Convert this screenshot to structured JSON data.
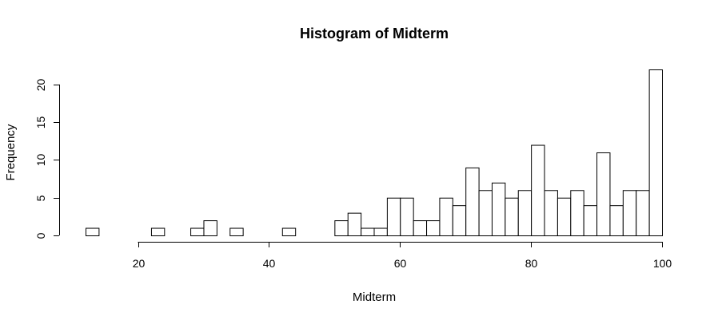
{
  "chart_data": {
    "type": "bar",
    "title": "Histogram of Midterm",
    "xlabel": "Midterm",
    "ylabel": "Frequency",
    "bin_width": 2,
    "bin_start": 12,
    "values": [
      1,
      0,
      0,
      0,
      0,
      1,
      0,
      0,
      1,
      2,
      0,
      1,
      0,
      0,
      0,
      1,
      0,
      0,
      0,
      2,
      3,
      1,
      1,
      5,
      5,
      2,
      2,
      5,
      4,
      9,
      6,
      7,
      5,
      6,
      12,
      6,
      5,
      6,
      4,
      11,
      4,
      6,
      6,
      22
    ],
    "xlim": [
      12,
      100
    ],
    "ylim": [
      0,
      22
    ],
    "x_ticks": [
      20,
      40,
      60,
      80,
      100
    ],
    "x_tick_labels": [
      "20",
      "40",
      "60",
      "80",
      "100"
    ],
    "y_ticks": [
      0,
      5,
      10,
      15,
      20
    ],
    "y_tick_labels": [
      "0",
      "5",
      "10",
      "15",
      "20"
    ],
    "grid": false,
    "colors": {
      "bar_fill": "#ffffff",
      "bar_stroke": "#000000"
    }
  }
}
